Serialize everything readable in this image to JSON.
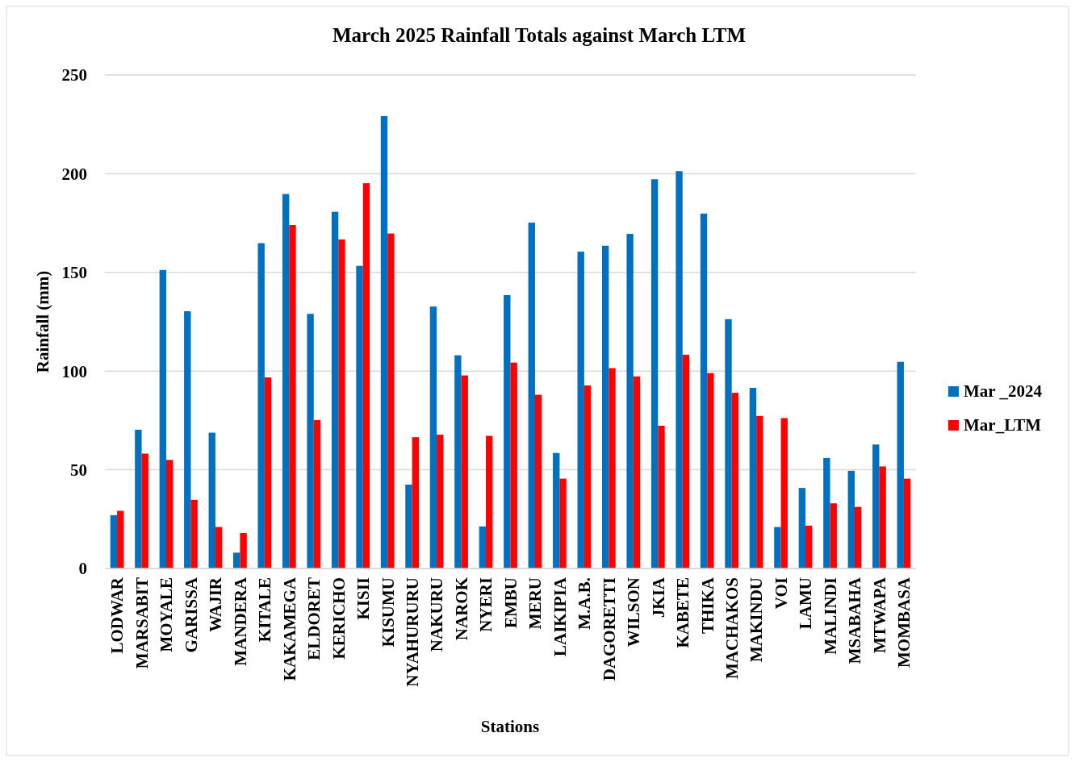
{
  "chart_data": {
    "type": "bar",
    "title": "March 2025 Rainfall Totals against March LTM",
    "xlabel": "Stations",
    "ylabel": "Rainfall (mm)",
    "categories": [
      "LODWAR",
      "MARSABIT",
      "MOYALE",
      "GARISSA",
      "WAJIR",
      "MANDERA",
      "KITALE",
      "KAKAMEGA",
      "ELDORET",
      "KERICHO",
      "KISII",
      "KISUMU",
      "NYAHURURU",
      "NAKURU",
      "NAROK",
      "NYERI",
      "EMBU",
      "MERU",
      "LAIKIPIA",
      "M.A.B.",
      "DAGORETTI",
      "WILSON",
      "JKIA",
      "KABETE",
      "THIKA",
      "MACHAKOS",
      "MAKINDU",
      "VOI",
      "LAMU",
      "MALINDI",
      "MSABAHA",
      "MTWAPA",
      "MOMBASA"
    ],
    "series": [
      {
        "name": "Mar _2024",
        "color": "#0070c0",
        "values": [
          27,
          70.3,
          151.2,
          130.3,
          68.8,
          8,
          164.8,
          189.7,
          129,
          180.7,
          153.3,
          229.2,
          42.5,
          132.7,
          108,
          21.3,
          138.5,
          175.2,
          58.5,
          160.5,
          163.5,
          169.5,
          197.2,
          201.3,
          179.8,
          126.3,
          91.5,
          21,
          40.8,
          56,
          49.5,
          62.8,
          104.7
        ]
      },
      {
        "name": "Mar_LTM",
        "color": "#ff0000",
        "values": [
          29.2,
          58.2,
          55,
          34.8,
          21,
          18,
          96.8,
          174,
          75.2,
          166.7,
          195.2,
          169.7,
          66.5,
          67.8,
          97.8,
          67.2,
          104.3,
          88,
          45.5,
          92.7,
          101.5,
          97.3,
          72.3,
          108.3,
          99,
          89,
          77.3,
          76.2,
          21.7,
          33,
          31.2,
          51.7,
          45.5
        ]
      }
    ],
    "ylim": [
      0,
      250
    ],
    "yticks": [
      0,
      50,
      100,
      150,
      200,
      250
    ],
    "grid": "y",
    "legend": "right"
  }
}
